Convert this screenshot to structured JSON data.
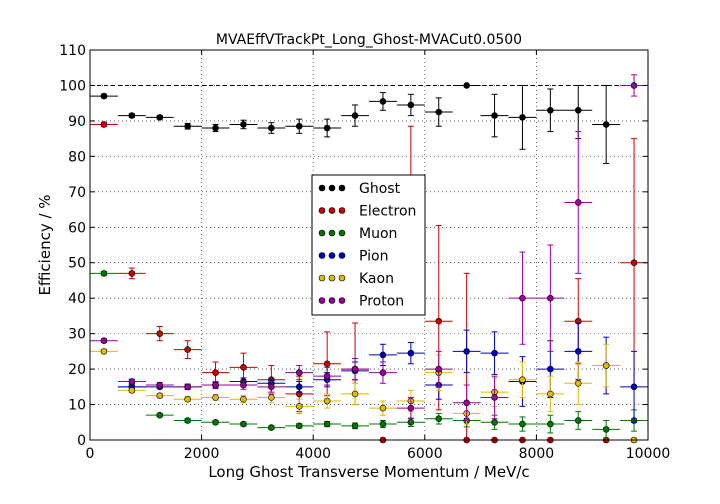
{
  "chart_data": {
    "type": "scatter",
    "title": "MVAEffVTrackPt_Long_Ghost-MVACut0.0500",
    "xlabel": "Long Ghost Transverse Momentum / MeV/c",
    "ylabel": "Efficiency / %",
    "xlim": [
      0,
      10000
    ],
    "ylim": [
      0,
      110
    ],
    "xticks": [
      0,
      2000,
      4000,
      6000,
      8000,
      10000
    ],
    "yticks": [
      0,
      10,
      20,
      30,
      40,
      50,
      60,
      70,
      80,
      90,
      100,
      110
    ],
    "grid": true,
    "reference_line": 100,
    "bin_half_width": 250,
    "legend_position": "center",
    "series": [
      {
        "name": "Ghost",
        "color": "#000000",
        "x": [
          250,
          750,
          1250,
          1750,
          2250,
          2750,
          3250,
          3750,
          4250,
          4750,
          5250,
          5750,
          6250,
          6750,
          7250,
          7750,
          8250,
          8750,
          9250
        ],
        "y": [
          97,
          91.5,
          91,
          88.5,
          88,
          89,
          88,
          88.5,
          88,
          91.5,
          95.5,
          94.5,
          92.5,
          100,
          91.5,
          91,
          93,
          93,
          89
        ],
        "err_lo": [
          0.5,
          0.5,
          0.5,
          0.8,
          1,
          1.2,
          1.5,
          2,
          2.5,
          3,
          2.5,
          3,
          4,
          0,
          6,
          9,
          6,
          8,
          11
        ],
        "err_hi": [
          0.5,
          0.5,
          0.5,
          0.8,
          1,
          1.2,
          1.5,
          2,
          2.5,
          3,
          2.5,
          3,
          4,
          0,
          6,
          9,
          6,
          7,
          11
        ]
      },
      {
        "name": "Electron",
        "color": "#cc0000",
        "x": [
          250,
          750,
          1250,
          1750,
          2250,
          2750,
          3250,
          3750,
          4250,
          4750,
          5250,
          5750,
          6250,
          6750,
          7250,
          7750,
          8250,
          8750,
          9250,
          9750
        ],
        "y": [
          89,
          47,
          30,
          25.5,
          19,
          20.5,
          17,
          13,
          21.5,
          20,
          0,
          71.5,
          33.5,
          0,
          0,
          0,
          0,
          33.5,
          0,
          50
        ],
        "err_lo": [
          0.5,
          1.5,
          2,
          2.5,
          3,
          4,
          4,
          5,
          9,
          10,
          0,
          17,
          25,
          0,
          0,
          0,
          0,
          12,
          0,
          35
        ],
        "err_hi": [
          0.5,
          1.5,
          2,
          2.5,
          3,
          4,
          4,
          5,
          9,
          13,
          0,
          17,
          27,
          47,
          0,
          0,
          0,
          12,
          0,
          35
        ]
      },
      {
        "name": "Muon",
        "color": "#007700",
        "x": [
          250,
          750,
          1250,
          1750,
          2250,
          2750,
          3250,
          3750,
          4250,
          4750,
          5250,
          5750,
          6250,
          6750,
          7250,
          7750,
          8250,
          8750,
          9250,
          9750
        ],
        "y": [
          47,
          15,
          7,
          5.5,
          5,
          4.5,
          3.5,
          4,
          4.5,
          4,
          4.5,
          5,
          6,
          5.5,
          5,
          4.5,
          4.5,
          5.5,
          3,
          5.5
        ],
        "err_lo": [
          0.5,
          0.8,
          0.5,
          0.5,
          0.5,
          0.5,
          0.5,
          0.6,
          0.7,
          0.8,
          1,
          1.2,
          1.5,
          1.8,
          2,
          2,
          2.5,
          2.5,
          2.5,
          3
        ],
        "err_hi": [
          0.5,
          0.8,
          0.5,
          0.5,
          0.5,
          0.5,
          0.5,
          0.6,
          0.7,
          0.8,
          1,
          1.2,
          1.5,
          1.8,
          2,
          2,
          2.5,
          2.5,
          2.5,
          3
        ]
      },
      {
        "name": "Pion",
        "color": "#0000bb",
        "x": [
          750,
          1250,
          1750,
          2250,
          2750,
          3250,
          3750,
          4250,
          4750,
          5250,
          5750,
          6250,
          6750,
          7250,
          7750,
          8250,
          8750,
          9250,
          9750
        ],
        "y": [
          15,
          15,
          15,
          15.5,
          16.5,
          16,
          15,
          17,
          19.5,
          24,
          24.5,
          15.5,
          25,
          24.5,
          16.5,
          20,
          25,
          21,
          15
        ],
        "err_lo": [
          0.5,
          0.5,
          0.6,
          0.8,
          1,
          1.2,
          1.5,
          2,
          2.5,
          3,
          3,
          4,
          6,
          6,
          7,
          8,
          8,
          8,
          10
        ],
        "err_hi": [
          0.5,
          0.5,
          0.6,
          0.8,
          1,
          1.2,
          1.5,
          2,
          2.5,
          3,
          3,
          4,
          6,
          6,
          7,
          8,
          8,
          8,
          10
        ]
      },
      {
        "name": "Kaon",
        "color": "#ddbb00",
        "x": [
          250,
          750,
          1250,
          1750,
          2250,
          2750,
          3250,
          3750,
          4250,
          4750,
          5250,
          5750,
          6250,
          6750,
          7250,
          7750,
          8250,
          8750,
          9250,
          9750
        ],
        "y": [
          25,
          14,
          12.5,
          11.5,
          12,
          11.5,
          12,
          9.5,
          11,
          13,
          9,
          11,
          19,
          7.5,
          13.5,
          17,
          13,
          16,
          21,
          0
        ],
        "err_lo": [
          0.5,
          0.6,
          0.6,
          0.7,
          0.8,
          1,
          1.5,
          2,
          2,
          3,
          2,
          3,
          5,
          3,
          4,
          5,
          5,
          6,
          6,
          0
        ],
        "err_hi": [
          0.5,
          0.6,
          0.6,
          0.7,
          0.8,
          1,
          1.5,
          2,
          2,
          3,
          2,
          3,
          5,
          3,
          4,
          5,
          5,
          6,
          6,
          0
        ]
      },
      {
        "name": "Proton",
        "color": "#990099",
        "x": [
          250,
          750,
          1250,
          1750,
          2250,
          2750,
          3250,
          3750,
          4250,
          4750,
          5250,
          5750,
          6250,
          6750,
          7250,
          7750,
          8250,
          8750,
          9750
        ],
        "y": [
          28,
          16.5,
          15.5,
          15,
          15.5,
          15.5,
          15,
          19,
          18,
          20,
          19,
          9,
          20,
          10.5,
          12,
          40,
          40,
          67,
          100
        ],
        "err_lo": [
          0.5,
          0.7,
          0.7,
          0.8,
          1,
          1.2,
          1.5,
          2,
          2.5,
          3,
          3,
          3,
          5,
          5,
          6,
          13,
          15,
          20,
          3
        ],
        "err_hi": [
          0.5,
          0.7,
          0.7,
          0.8,
          1,
          1.2,
          1.5,
          2,
          2.5,
          3,
          3,
          3,
          5,
          5,
          6,
          13,
          15,
          20,
          3
        ]
      }
    ]
  }
}
